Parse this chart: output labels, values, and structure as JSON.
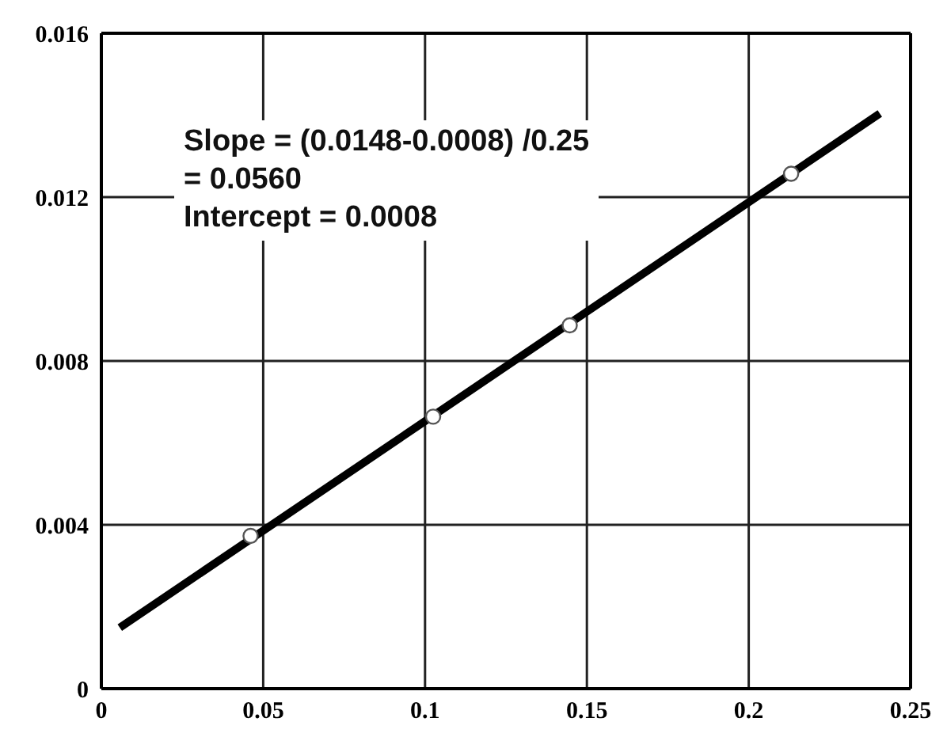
{
  "chart_data": {
    "type": "scatter",
    "xlim": [
      0,
      0.25
    ],
    "xticks": [
      0,
      0.05,
      0.1,
      0.15,
      0.2,
      0.25
    ],
    "ylim": [
      0,
      0.016
    ],
    "yticks": [
      0,
      0.004,
      0.008,
      0.012,
      0.016
    ],
    "grid": true,
    "series": [
      {
        "marker": "circle",
        "color": "#ffffff",
        "x": [
          0.0461,
          0.1025,
          0.1447,
          0.2131
        ],
        "values": [
          0.00373,
          0.00664,
          0.00887,
          0.01257
        ]
      },
      {
        "type": "line",
        "marker": "none",
        "color": "#000000",
        "x": [
          0.0057,
          0.2405
        ],
        "values": [
          0.00149,
          0.01404
        ]
      }
    ],
    "annotations": [
      "Slope = (0.0148-0.0008) /0.25",
      "= 0.0560",
      "Intercept = 0.0008"
    ]
  }
}
